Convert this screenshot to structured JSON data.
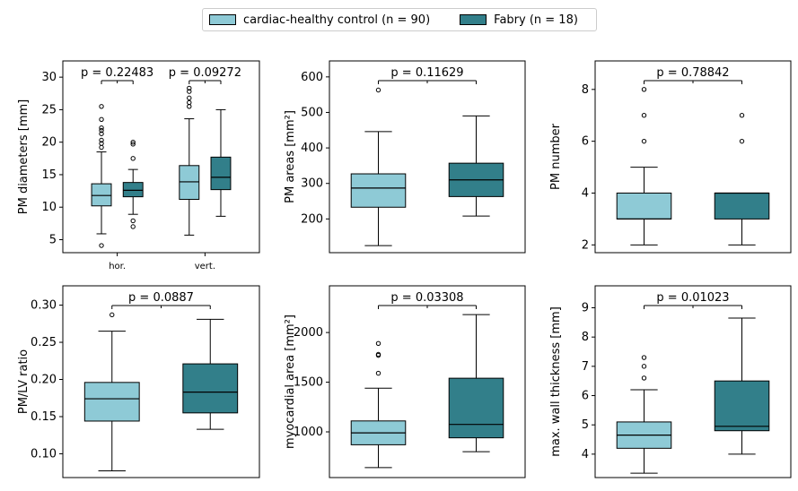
{
  "colors": {
    "control": "#8ecad6",
    "fabry": "#327f8a"
  },
  "legend": {
    "control_label": "cardiac-healthy control (n = 90)",
    "fabry_label": "Fabry (n = 18)"
  },
  "chart_data": [
    {
      "type": "box",
      "ylabel": "PM diameters [mm]",
      "ylim": [
        3,
        32.5
      ],
      "yticks": [
        5,
        10,
        15,
        20,
        25,
        30
      ],
      "categories": [
        "hor.",
        "vert."
      ],
      "p_values": [
        "p = 0.22483",
        "p = 0.09272"
      ],
      "series": [
        {
          "group": "control",
          "boxes": [
            {
              "min": 5.9,
              "q1": 10.2,
              "median": 11.8,
              "q3": 13.6,
              "max": 18.5,
              "outliers": [
                4.1,
                19.2,
                19.8,
                20.3,
                21.3,
                21.8,
                22.2,
                23.5,
                25.5
              ]
            },
            {
              "min": 5.7,
              "q1": 11.2,
              "median": 13.9,
              "q3": 16.4,
              "max": 23.6,
              "outliers": [
                25.5,
                26.1,
                26.8,
                27.8,
                28.3
              ]
            }
          ]
        },
        {
          "group": "fabry",
          "boxes": [
            {
              "min": 8.9,
              "q1": 11.6,
              "median": 12.6,
              "q3": 13.8,
              "max": 15.8,
              "outliers": [
                7.0,
                7.9,
                17.5,
                19.7,
                20.0
              ]
            },
            {
              "min": 8.6,
              "q1": 12.7,
              "median": 14.6,
              "q3": 17.7,
              "max": 25.0,
              "outliers": []
            }
          ]
        }
      ]
    },
    {
      "type": "box",
      "ylabel": "PM areas [mm²]",
      "ylim": [
        105,
        645
      ],
      "yticks": [
        200,
        300,
        400,
        500,
        600
      ],
      "categories": [],
      "p_values": [
        "p = 0.11629"
      ],
      "series": [
        {
          "group": "control",
          "boxes": [
            {
              "min": 125,
              "q1": 233,
              "median": 287,
              "q3": 327,
              "max": 446,
              "outliers": [
                563
              ]
            }
          ]
        },
        {
          "group": "fabry",
          "boxes": [
            {
              "min": 208,
              "q1": 263,
              "median": 310,
              "q3": 357,
              "max": 490,
              "outliers": []
            }
          ]
        }
      ]
    },
    {
      "type": "box",
      "ylabel": "PM number",
      "ylim": [
        1.7,
        9.1
      ],
      "yticks": [
        2,
        4,
        6,
        8
      ],
      "categories": [],
      "p_values": [
        "p = 0.78842"
      ],
      "series": [
        {
          "group": "control",
          "boxes": [
            {
              "min": 2,
              "q1": 3,
              "median": 3,
              "q3": 4,
              "max": 5,
              "outliers": [
                6,
                7,
                8
              ]
            }
          ]
        },
        {
          "group": "fabry",
          "boxes": [
            {
              "min": 2,
              "q1": 3,
              "median": 4,
              "q3": 4,
              "max": 4,
              "outliers": [
                6,
                7
              ]
            }
          ]
        }
      ]
    },
    {
      "type": "box",
      "ylabel": "PM/LV ratio",
      "ylim": [
        0.068,
        0.326
      ],
      "yticks": [
        0.1,
        0.15,
        0.2,
        0.25,
        0.3
      ],
      "ytick_labels": [
        "0.10",
        "0.15",
        "0.20",
        "0.25",
        "0.30"
      ],
      "categories": [],
      "p_values": [
        "p = 0.0887"
      ],
      "series": [
        {
          "group": "control",
          "boxes": [
            {
              "min": 0.077,
              "q1": 0.144,
              "median": 0.174,
              "q3": 0.196,
              "max": 0.265,
              "outliers": [
                0.287
              ]
            }
          ]
        },
        {
          "group": "fabry",
          "boxes": [
            {
              "min": 0.133,
              "q1": 0.155,
              "median": 0.183,
              "q3": 0.221,
              "max": 0.281,
              "outliers": []
            }
          ]
        }
      ]
    },
    {
      "type": "box",
      "ylabel": "myocardial area [mm²]",
      "ylim": [
        540,
        2470
      ],
      "yticks": [
        1000,
        1500,
        2000
      ],
      "categories": [],
      "p_values": [
        "p = 0.03308"
      ],
      "series": [
        {
          "group": "control",
          "boxes": [
            {
              "min": 640,
              "q1": 870,
              "median": 990,
              "q3": 1110,
              "max": 1440,
              "outliers": [
                1590,
                1770,
                1780,
                1890
              ]
            }
          ]
        },
        {
          "group": "fabry",
          "boxes": [
            {
              "min": 800,
              "q1": 940,
              "median": 1075,
              "q3": 1540,
              "max": 2180,
              "outliers": []
            }
          ]
        }
      ]
    },
    {
      "type": "box",
      "ylabel": "max. wall thickness [mm]",
      "ylim": [
        3.2,
        9.75
      ],
      "yticks": [
        4,
        5,
        6,
        7,
        8,
        9
      ],
      "categories": [],
      "p_values": [
        "p = 0.01023"
      ],
      "series": [
        {
          "group": "control",
          "boxes": [
            {
              "min": 3.35,
              "q1": 4.2,
              "median": 4.65,
              "q3": 5.1,
              "max": 6.2,
              "outliers": [
                6.6,
                7.0,
                7.3
              ]
            }
          ]
        },
        {
          "group": "fabry",
          "boxes": [
            {
              "min": 4.0,
              "q1": 4.8,
              "median": 4.95,
              "q3": 6.5,
              "max": 8.65,
              "outliers": []
            }
          ]
        }
      ]
    }
  ]
}
